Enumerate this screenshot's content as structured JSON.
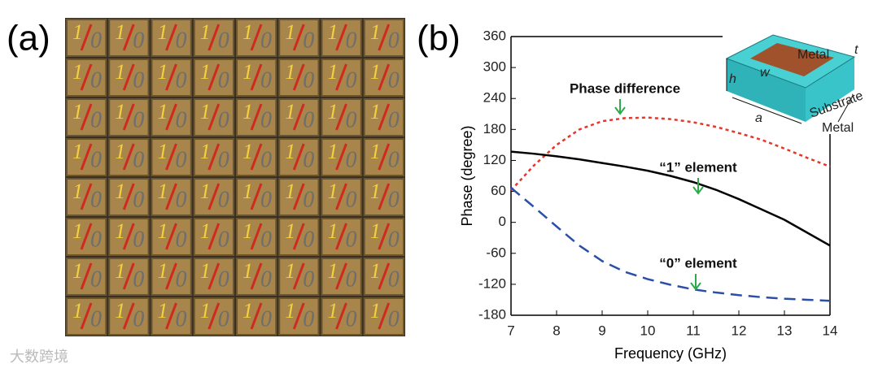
{
  "panel_a": {
    "label": "(a)",
    "tile": {
      "one": "1",
      "zero": "0"
    }
  },
  "chart_data": {
    "type": "line",
    "label": "(b)",
    "xlabel": "Frequency (GHz)",
    "ylabel": "Phase (degree)",
    "x": [
      7,
      7.5,
      8,
      8.5,
      9,
      9.5,
      10,
      10.5,
      11,
      11.5,
      12,
      12.5,
      13,
      13.5,
      14
    ],
    "series": [
      {
        "name": "Phase difference",
        "color": "#e8352a",
        "dash": "dotted",
        "values": [
          62,
          110,
          150,
          180,
          196,
          202,
          203,
          200,
          194,
          185,
          173,
          160,
          143,
          125,
          108
        ]
      },
      {
        "name": "“1” element",
        "color": "#000000",
        "dash": "solid",
        "values": [
          137,
          133,
          128,
          122,
          115,
          108,
          100,
          90,
          78,
          63,
          45,
          25,
          5,
          -20,
          -45
        ]
      },
      {
        "name": "“0” element",
        "color": "#2b4fa8",
        "dash": "dashed",
        "values": [
          67,
          30,
          -8,
          -45,
          -75,
          -96,
          -110,
          -121,
          -130,
          -136,
          -141,
          -145,
          -148,
          -150,
          -152
        ]
      }
    ],
    "xlim": [
      7,
      14
    ],
    "xticks": [
      7,
      8,
      9,
      10,
      11,
      12,
      13,
      14
    ],
    "ylim": [
      -180,
      360
    ],
    "yticks": [
      -180,
      -120,
      -60,
      0,
      60,
      120,
      180,
      240,
      300,
      360
    ],
    "inset": {
      "metal_top": "Metal",
      "t": "t",
      "h": "h",
      "w": "w",
      "substrate": "Substrate",
      "a": "a",
      "metal_bottom": "Metal"
    }
  },
  "watermark": "大数跨境"
}
